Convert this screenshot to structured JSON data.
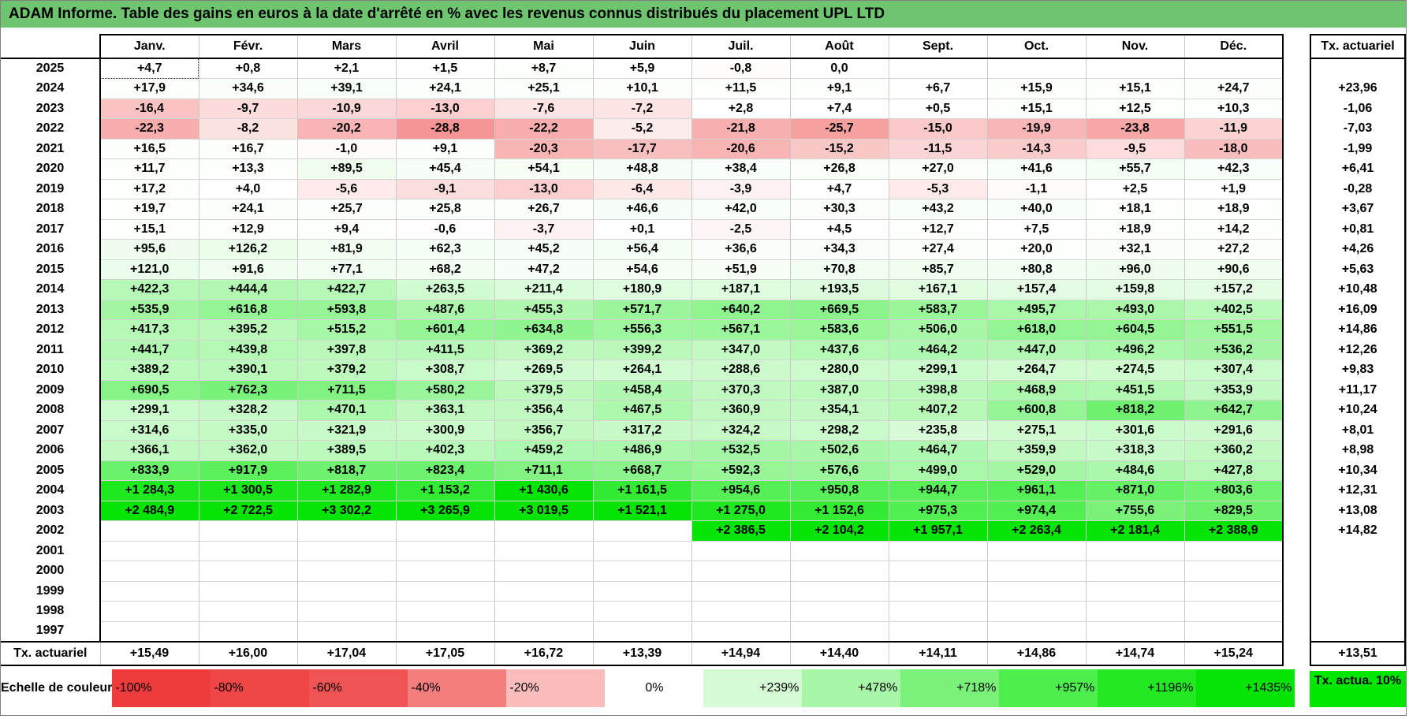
{
  "title": "ADAM Informe. Table des gains en euros à la date d'arrêté en % avec les revenus connus distribués du placement UPL LTD",
  "months": [
    "Janv.",
    "Févr.",
    "Mars",
    "Avril",
    "Mai",
    "Juin",
    "Juil.",
    "Août",
    "Sept.",
    "Oct.",
    "Nov.",
    "Déc."
  ],
  "tx_header": "Tx. actuariel",
  "rows": [
    {
      "year": "2025",
      "cells": [
        "+4,7",
        "+0,8",
        "+2,1",
        "+1,5",
        "+8,7",
        "+5,9",
        "-0,8",
        "0,0",
        "",
        "",
        "",
        ""
      ],
      "tx": ""
    },
    {
      "year": "2024",
      "cells": [
        "+17,9",
        "+34,6",
        "+39,1",
        "+24,1",
        "+25,1",
        "+10,1",
        "+11,5",
        "+9,1",
        "+6,7",
        "+15,9",
        "+15,1",
        "+24,7"
      ],
      "tx": "+23,96"
    },
    {
      "year": "2023",
      "cells": [
        "-16,4",
        "-9,7",
        "-10,9",
        "-13,0",
        "-7,6",
        "-7,2",
        "+2,8",
        "+7,4",
        "+0,5",
        "+15,1",
        "+12,5",
        "+10,3"
      ],
      "tx": "-1,06"
    },
    {
      "year": "2022",
      "cells": [
        "-22,3",
        "-8,2",
        "-20,2",
        "-28,8",
        "-22,2",
        "-5,2",
        "-21,8",
        "-25,7",
        "-15,0",
        "-19,9",
        "-23,8",
        "-11,9"
      ],
      "tx": "-7,03"
    },
    {
      "year": "2021",
      "cells": [
        "+16,5",
        "+16,7",
        "-1,0",
        "+9,1",
        "-20,3",
        "-17,7",
        "-20,6",
        "-15,2",
        "-11,5",
        "-14,3",
        "-9,5",
        "-18,0"
      ],
      "tx": "-1,99"
    },
    {
      "year": "2020",
      "cells": [
        "+11,7",
        "+13,3",
        "+89,5",
        "+45,4",
        "+54,1",
        "+48,8",
        "+38,4",
        "+26,8",
        "+27,0",
        "+41,6",
        "+55,7",
        "+42,3"
      ],
      "tx": "+6,41"
    },
    {
      "year": "2019",
      "cells": [
        "+17,2",
        "+4,0",
        "-5,6",
        "-9,1",
        "-13,0",
        "-6,4",
        "-3,9",
        "+4,7",
        "-5,3",
        "-1,1",
        "+2,5",
        "+1,9"
      ],
      "tx": "-0,28"
    },
    {
      "year": "2018",
      "cells": [
        "+19,7",
        "+24,1",
        "+25,7",
        "+25,8",
        "+26,7",
        "+46,6",
        "+42,0",
        "+30,3",
        "+43,2",
        "+40,0",
        "+18,1",
        "+18,9"
      ],
      "tx": "+3,67"
    },
    {
      "year": "2017",
      "cells": [
        "+15,1",
        "+12,9",
        "+9,4",
        "-0,6",
        "-3,7",
        "+0,1",
        "-2,5",
        "+4,5",
        "+12,7",
        "+7,5",
        "+18,9",
        "+14,2"
      ],
      "tx": "+0,81"
    },
    {
      "year": "2016",
      "cells": [
        "+95,6",
        "+126,2",
        "+81,9",
        "+62,3",
        "+45,2",
        "+56,4",
        "+36,6",
        "+34,3",
        "+27,4",
        "+20,0",
        "+32,1",
        "+27,2"
      ],
      "tx": "+4,26"
    },
    {
      "year": "2015",
      "cells": [
        "+121,0",
        "+91,6",
        "+77,1",
        "+68,2",
        "+47,2",
        "+54,6",
        "+51,9",
        "+70,8",
        "+85,7",
        "+80,8",
        "+96,0",
        "+90,6"
      ],
      "tx": "+5,63"
    },
    {
      "year": "2014",
      "cells": [
        "+422,3",
        "+444,4",
        "+422,7",
        "+263,5",
        "+211,4",
        "+180,9",
        "+187,1",
        "+193,5",
        "+167,1",
        "+157,4",
        "+159,8",
        "+157,2"
      ],
      "tx": "+10,48"
    },
    {
      "year": "2013",
      "cells": [
        "+535,9",
        "+616,8",
        "+593,8",
        "+487,6",
        "+455,3",
        "+571,7",
        "+640,2",
        "+669,5",
        "+583,7",
        "+495,7",
        "+493,0",
        "+402,5"
      ],
      "tx": "+16,09"
    },
    {
      "year": "2012",
      "cells": [
        "+417,3",
        "+395,2",
        "+515,2",
        "+601,4",
        "+634,8",
        "+556,3",
        "+567,1",
        "+583,6",
        "+506,0",
        "+618,0",
        "+604,5",
        "+551,5"
      ],
      "tx": "+14,86"
    },
    {
      "year": "2011",
      "cells": [
        "+441,7",
        "+439,8",
        "+397,8",
        "+411,5",
        "+369,2",
        "+399,2",
        "+347,0",
        "+437,6",
        "+464,2",
        "+447,0",
        "+496,2",
        "+536,2"
      ],
      "tx": "+12,26"
    },
    {
      "year": "2010",
      "cells": [
        "+389,2",
        "+390,1",
        "+379,2",
        "+308,7",
        "+269,5",
        "+264,1",
        "+288,6",
        "+280,0",
        "+299,1",
        "+264,7",
        "+274,5",
        "+307,4"
      ],
      "tx": "+9,83"
    },
    {
      "year": "2009",
      "cells": [
        "+690,5",
        "+762,3",
        "+711,5",
        "+580,2",
        "+379,5",
        "+458,4",
        "+370,3",
        "+387,0",
        "+398,8",
        "+468,9",
        "+451,5",
        "+353,9"
      ],
      "tx": "+11,17"
    },
    {
      "year": "2008",
      "cells": [
        "+299,1",
        "+328,2",
        "+470,1",
        "+363,1",
        "+356,4",
        "+467,5",
        "+360,9",
        "+354,1",
        "+407,2",
        "+600,8",
        "+818,2",
        "+642,7"
      ],
      "tx": "+10,24"
    },
    {
      "year": "2007",
      "cells": [
        "+314,6",
        "+335,0",
        "+321,9",
        "+300,9",
        "+356,7",
        "+317,2",
        "+324,2",
        "+298,2",
        "+235,8",
        "+275,1",
        "+301,6",
        "+291,6"
      ],
      "tx": "+8,01"
    },
    {
      "year": "2006",
      "cells": [
        "+366,1",
        "+362,0",
        "+389,5",
        "+402,3",
        "+459,2",
        "+486,9",
        "+532,5",
        "+502,6",
        "+464,7",
        "+359,9",
        "+318,3",
        "+360,2"
      ],
      "tx": "+8,98"
    },
    {
      "year": "2005",
      "cells": [
        "+833,9",
        "+917,9",
        "+818,7",
        "+823,4",
        "+711,1",
        "+668,7",
        "+592,3",
        "+576,6",
        "+499,0",
        "+529,0",
        "+484,6",
        "+427,8"
      ],
      "tx": "+10,34"
    },
    {
      "year": "2004",
      "cells": [
        "+1 284,3",
        "+1 300,5",
        "+1 282,9",
        "+1 153,2",
        "+1 430,6",
        "+1 161,5",
        "+954,6",
        "+950,8",
        "+944,7",
        "+961,1",
        "+871,0",
        "+803,6"
      ],
      "tx": "+12,31"
    },
    {
      "year": "2003",
      "cells": [
        "+2 484,9",
        "+2 722,5",
        "+3 302,2",
        "+3 265,9",
        "+3 019,5",
        "+1 521,1",
        "+1 275,0",
        "+1 152,6",
        "+975,3",
        "+974,4",
        "+755,6",
        "+829,5"
      ],
      "tx": "+13,08"
    },
    {
      "year": "2002",
      "cells": [
        "",
        "",
        "",
        "",
        "",
        "",
        "+2 386,5",
        "+2 104,2",
        "+1 957,1",
        "+2 263,4",
        "+2 181,4",
        "+2 388,9"
      ],
      "tx": "+14,82"
    },
    {
      "year": "2001",
      "cells": [
        "",
        "",
        "",
        "",
        "",
        "",
        "",
        "",
        "",
        "",
        "",
        ""
      ],
      "tx": ""
    },
    {
      "year": "2000",
      "cells": [
        "",
        "",
        "",
        "",
        "",
        "",
        "",
        "",
        "",
        "",
        "",
        ""
      ],
      "tx": ""
    },
    {
      "year": "1999",
      "cells": [
        "",
        "",
        "",
        "",
        "",
        "",
        "",
        "",
        "",
        "",
        "",
        ""
      ],
      "tx": ""
    },
    {
      "year": "1998",
      "cells": [
        "",
        "",
        "",
        "",
        "",
        "",
        "",
        "",
        "",
        "",
        "",
        ""
      ],
      "tx": ""
    },
    {
      "year": "1997",
      "cells": [
        "",
        "",
        "",
        "",
        "",
        "",
        "",
        "",
        "",
        "",
        "",
        ""
      ],
      "tx": ""
    }
  ],
  "total_row": {
    "label": "Tx. actuariel",
    "cells": [
      "+15,49",
      "+16,00",
      "+17,04",
      "+17,05",
      "+16,72",
      "+13,39",
      "+14,94",
      "+14,40",
      "+14,11",
      "+14,86",
      "+14,74",
      "+15,24"
    ],
    "tx": "+13,51"
  },
  "scale": {
    "label": "Echelle de couleur",
    "items": [
      "-100%",
      "-80%",
      "-60%",
      "-40%",
      "-20%",
      "0%",
      "+239%",
      "+478%",
      "+718%",
      "+957%",
      "+1196%",
      "+1435%"
    ],
    "colors": [
      "#ee3b3b",
      "#ef4646",
      "#f05353",
      "#f47e7e",
      "#fbbcbc",
      "#ffffff",
      "#d4fbd4",
      "#a8f7a8",
      "#7af27a",
      "#4dee4d",
      "#22e922",
      "#05e405"
    ],
    "tx_label": "Tx. actua. 10%",
    "tx_color": "#00e600"
  }
}
